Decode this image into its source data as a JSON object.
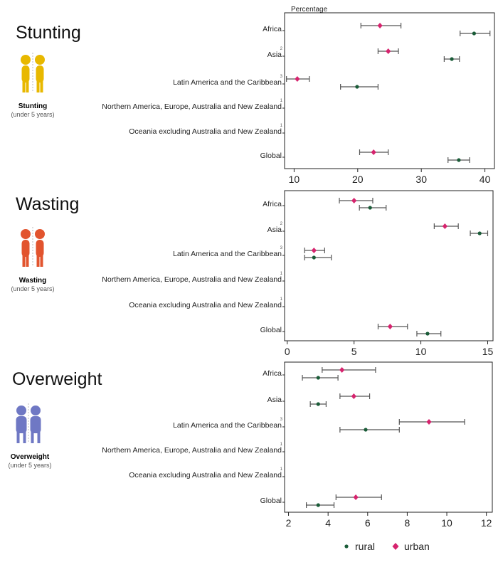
{
  "colors": {
    "rural": "#1a5c38",
    "urban": "#d6246e",
    "errorbar": "#555555",
    "stunting_icon": "#e8b800",
    "wasting_icon": "#e2542e",
    "overweight_icon": "#6f78c4"
  },
  "panels": [
    {
      "title": "Stunting",
      "icon": "children-icon",
      "icon_caption": "Stunting",
      "icon_sub": "(under 5 years)",
      "xlabel": "Percentage"
    },
    {
      "title": "Wasting",
      "icon": "children-icon",
      "icon_caption": "Wasting",
      "icon_sub": "(under 5 years)",
      "xlabel": ""
    },
    {
      "title": "Overweight",
      "icon": "children-icon",
      "icon_caption": "Overweight",
      "icon_sub": "(under 5 years)",
      "xlabel": ""
    }
  ],
  "chart_data": [
    {
      "type": "scatter",
      "title": "Stunting",
      "xlabel": "Percentage",
      "xlim": [
        8.5,
        41.5
      ],
      "xticks": [
        10,
        20,
        30,
        40
      ],
      "categories": [
        "Africa",
        "Asia",
        "Latin America and the Caribbean",
        "Northern America, Europe, Australia and New Zealand",
        "Oceania excluding Australia and New Zealand",
        "Global"
      ],
      "superscripts": [
        "",
        "2",
        "3",
        "1",
        "1",
        ""
      ],
      "series": [
        {
          "name": "urban",
          "values": [
            23.5,
            24.8,
            10.5,
            null,
            null,
            22.5
          ],
          "ci_low": [
            20.5,
            23.2,
            8.8,
            null,
            null,
            20.3
          ],
          "ci_high": [
            26.8,
            26.4,
            12.4,
            null,
            null,
            24.8
          ]
        },
        {
          "name": "rural",
          "values": [
            38.3,
            34.8,
            19.9,
            null,
            null,
            35.9
          ],
          "ci_low": [
            36.1,
            33.6,
            17.3,
            null,
            null,
            34.2
          ],
          "ci_high": [
            40.8,
            36.0,
            23.2,
            null,
            null,
            37.6
          ]
        }
      ]
    },
    {
      "type": "scatter",
      "title": "Wasting",
      "xlabel": "",
      "xlim": [
        -0.2,
        15.4
      ],
      "xticks": [
        0,
        5,
        10,
        15
      ],
      "categories": [
        "Africa",
        "Asia",
        "Latin America and the Caribbean",
        "Northern America, Europe, Australia and New Zealand",
        "Oceania excluding Australia and New Zealand",
        "Global"
      ],
      "superscripts": [
        "",
        "2",
        "3",
        "1",
        "1",
        ""
      ],
      "series": [
        {
          "name": "urban",
          "values": [
            5.0,
            11.8,
            2.0,
            null,
            null,
            7.7
          ],
          "ci_low": [
            3.9,
            11.0,
            1.3,
            null,
            null,
            6.8
          ],
          "ci_high": [
            6.4,
            12.8,
            2.8,
            null,
            null,
            9.0
          ]
        },
        {
          "name": "rural",
          "values": [
            6.2,
            14.4,
            2.0,
            null,
            null,
            10.5
          ],
          "ci_low": [
            5.4,
            13.7,
            1.3,
            null,
            null,
            9.7
          ],
          "ci_high": [
            7.4,
            15.0,
            3.3,
            null,
            null,
            11.5
          ]
        }
      ]
    },
    {
      "type": "scatter",
      "title": "Overweight",
      "xlabel": "",
      "xlim": [
        1.8,
        12.3
      ],
      "xticks": [
        2,
        4,
        6,
        8,
        10,
        12
      ],
      "categories": [
        "Africa",
        "Asia",
        "Latin America and the Caribbean",
        "Northern America, Europe, Australia and New Zealand",
        "Oceania excluding Australia and New Zealand",
        "Global"
      ],
      "superscripts": [
        "",
        "",
        "3",
        "1",
        "1",
        ""
      ],
      "series": [
        {
          "name": "urban",
          "values": [
            4.7,
            5.3,
            9.1,
            null,
            null,
            5.4
          ],
          "ci_low": [
            3.7,
            4.6,
            7.6,
            null,
            null,
            4.4
          ],
          "ci_high": [
            6.4,
            6.1,
            10.9,
            null,
            null,
            6.7
          ]
        },
        {
          "name": "rural",
          "values": [
            3.5,
            3.5,
            5.9,
            null,
            null,
            3.5
          ],
          "ci_low": [
            2.7,
            3.1,
            4.6,
            null,
            null,
            2.9
          ],
          "ci_high": [
            4.5,
            3.9,
            7.6,
            null,
            null,
            4.3
          ]
        }
      ]
    }
  ],
  "legend": [
    {
      "name": "rural",
      "label": "rural"
    },
    {
      "name": "urban",
      "label": "urban"
    }
  ]
}
